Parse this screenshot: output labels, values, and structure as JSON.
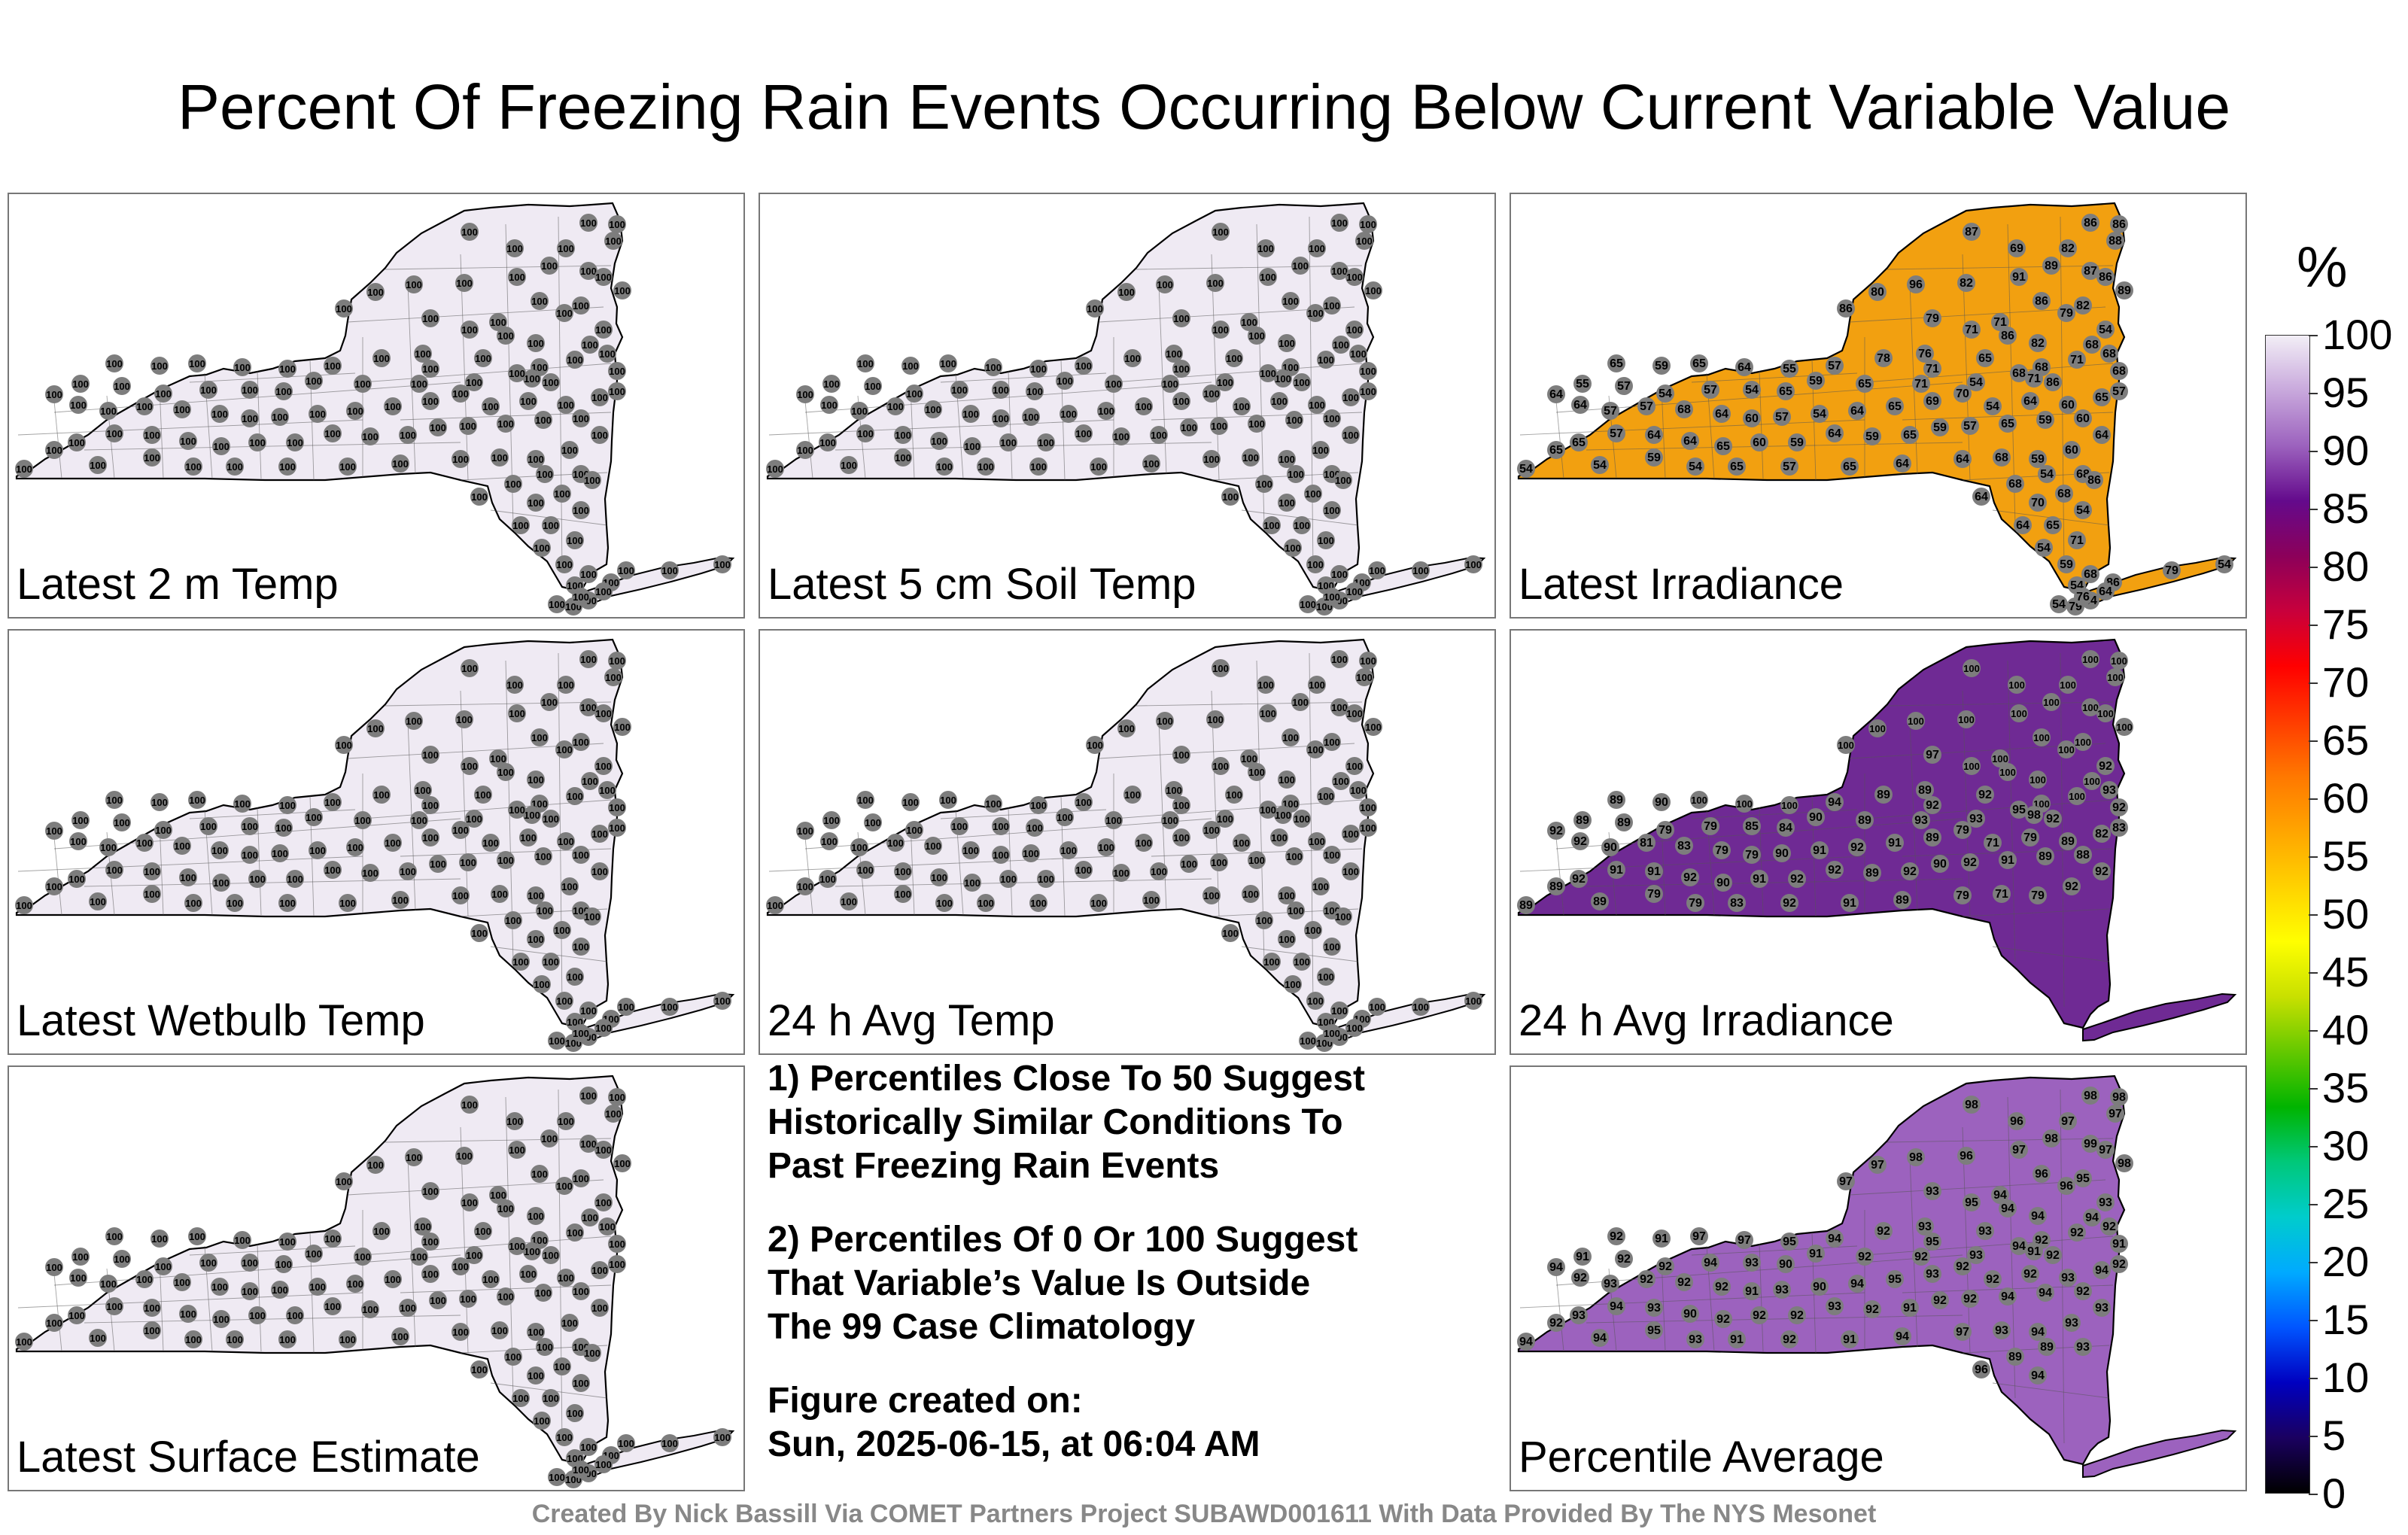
{
  "title": "Percent Of Freezing Rain Events Occurring Below Current Variable Value",
  "panels": [
    {
      "label": "Latest 2 m Temp",
      "fill": "#efeaf3",
      "values": [
        "100",
        "100",
        "100",
        "100",
        "100",
        "100",
        "100",
        "100",
        "100",
        "100",
        "100",
        "100",
        "100",
        "100",
        "100",
        "100",
        "100",
        "100",
        "100",
        "100",
        "100",
        "100",
        "100",
        "100",
        "100",
        "100",
        "100",
        "100",
        "100",
        "100",
        "100",
        "100",
        "100",
        "100",
        "100",
        "100",
        "100",
        "100",
        "100",
        "100",
        "100",
        "100",
        "100",
        "100",
        "100",
        "100",
        "100",
        "100",
        "100",
        "100",
        "100",
        "100",
        "100",
        "100",
        "100",
        "100",
        "100",
        "100",
        "100",
        "100",
        "100",
        "100",
        "100",
        "100",
        "100",
        "100",
        "100",
        "100",
        "100",
        "100",
        "100",
        "100",
        "100",
        "100",
        "100",
        "100",
        "100",
        "100",
        "100",
        "100",
        "100",
        "100",
        "100",
        "100",
        "100",
        "100",
        "100",
        "100",
        "100",
        "100",
        "100",
        "100",
        "100",
        "100",
        "100",
        "100",
        "100",
        "100",
        "100",
        "100",
        "100",
        "100",
        "100",
        "100",
        "100",
        "100",
        "100",
        "100",
        "100",
        "100",
        "100",
        "100",
        "100",
        "100",
        "100",
        "100",
        "100",
        "100",
        "100",
        "100",
        "100",
        "100",
        "100"
      ]
    },
    {
      "label": "Latest 5 cm Soil Temp",
      "fill": "#efeaf3",
      "values": [
        "100",
        "100",
        "100",
        "100",
        "100",
        "100",
        "100",
        "100",
        "100",
        "100",
        "100",
        "100",
        "100",
        "100",
        "100",
        "100",
        "100",
        "100",
        "100",
        "100",
        "100",
        "100",
        "100",
        "100",
        "100",
        "100",
        "100",
        "100",
        "100",
        "100",
        "100",
        "100",
        "100",
        "100",
        "100",
        "100",
        "100",
        "100",
        "100",
        "100",
        "100",
        "100",
        "100",
        "100",
        "100",
        "100",
        "100",
        "100",
        "100",
        "100",
        "100",
        "100",
        "100",
        "100",
        "100",
        "100",
        "100",
        "100",
        "100",
        "100",
        "100",
        "100",
        "100",
        "100",
        "100",
        "100",
        "100",
        "100",
        "100",
        "100",
        "100",
        "100",
        "100",
        "100",
        "100",
        "100",
        "100",
        "100",
        "100",
        "100",
        "100",
        "100",
        "100",
        "100",
        "100",
        "100",
        "100",
        "100",
        "100",
        "100",
        "100",
        "100",
        "100",
        "100",
        "100",
        "100",
        "100",
        "100",
        "100",
        "100",
        "100",
        "100",
        "100",
        "100",
        "100",
        "100",
        "100",
        "100",
        "100",
        "100",
        "100",
        "100",
        "100",
        "100",
        "100",
        "100",
        "100",
        "100",
        "100",
        "100",
        "100",
        "100",
        "100"
      ]
    },
    {
      "label": "Latest Irradiance",
      "fill": "#f2a010",
      "values": [
        "86",
        "86",
        "87",
        "88",
        "82",
        "69",
        "89",
        "87",
        "86",
        "91",
        "82",
        "89",
        "80",
        "96",
        "86",
        "86",
        "82",
        "79",
        "71",
        "79",
        "71",
        "86",
        "82",
        "68",
        "54",
        "71",
        "68",
        "71",
        "68",
        "86",
        "68",
        "68",
        "76",
        "78",
        "65",
        "59",
        "65",
        "64",
        "55",
        "57",
        "71",
        "65",
        "54",
        "71",
        "65",
        "59",
        "65",
        "54",
        "57",
        "54",
        "57",
        "55",
        "64",
        "64",
        "57",
        "57",
        "68",
        "64",
        "60",
        "57",
        "54",
        "64",
        "65",
        "69",
        "70",
        "54",
        "64",
        "60",
        "65",
        "57",
        "60",
        "59",
        "65",
        "57",
        "59",
        "65",
        "59",
        "64",
        "59",
        "60",
        "65",
        "64",
        "64",
        "57",
        "65",
        "65",
        "54",
        "54",
        "59",
        "54",
        "65",
        "57",
        "65",
        "64",
        "64",
        "68",
        "59",
        "60",
        "64",
        "68",
        "54",
        "68",
        "64",
        "70",
        "68",
        "86",
        "54",
        "65",
        "64",
        "71",
        "54",
        "59",
        "68",
        "54",
        "64",
        "79",
        "86",
        "79",
        "54",
        "54",
        "76",
        "64"
      ]
    },
    {
      "label": "Latest Wetbulb Temp",
      "fill": "#efeaf3",
      "values": [
        "100",
        "100",
        "100",
        "100",
        "100",
        "100",
        "100",
        "100",
        "100",
        "100",
        "100",
        "100",
        "100",
        "100",
        "100",
        "100",
        "100",
        "100",
        "100",
        "100",
        "100",
        "100",
        "100",
        "100",
        "100",
        "100",
        "100",
        "100",
        "100",
        "100",
        "100",
        "100",
        "100",
        "100",
        "100",
        "100",
        "100",
        "100",
        "100",
        "100",
        "100",
        "100",
        "100",
        "100",
        "100",
        "100",
        "100",
        "100",
        "100",
        "100",
        "100",
        "100",
        "100",
        "100",
        "100",
        "100",
        "100",
        "100",
        "100",
        "100",
        "100",
        "100",
        "100",
        "100",
        "100",
        "100",
        "100",
        "100",
        "100",
        "100",
        "100",
        "100",
        "100",
        "100",
        "100",
        "100",
        "100",
        "100",
        "100",
        "100",
        "100",
        "100",
        "100",
        "100",
        "100",
        "100",
        "100",
        "100",
        "100",
        "100",
        "100",
        "100",
        "100",
        "100",
        "100",
        "100",
        "100",
        "100",
        "100",
        "100",
        "100",
        "100",
        "100",
        "100",
        "100",
        "100",
        "100",
        "100",
        "100",
        "100",
        "100",
        "100",
        "100",
        "100",
        "100",
        "100",
        "100",
        "100",
        "100",
        "100",
        "100",
        "100",
        "100"
      ]
    },
    {
      "label": "24 h Avg Temp",
      "fill": "#efeaf3",
      "values": [
        "100",
        "100",
        "100",
        "100",
        "100",
        "100",
        "100",
        "100",
        "100",
        "100",
        "100",
        "100",
        "100",
        "100",
        "100",
        "100",
        "100",
        "100",
        "100",
        "100",
        "100",
        "100",
        "100",
        "100",
        "100",
        "100",
        "100",
        "100",
        "100",
        "100",
        "100",
        "100",
        "100",
        "100",
        "100",
        "100",
        "100",
        "100",
        "100",
        "100",
        "100",
        "100",
        "100",
        "100",
        "100",
        "100",
        "100",
        "100",
        "100",
        "100",
        "100",
        "100",
        "100",
        "100",
        "100",
        "100",
        "100",
        "100",
        "100",
        "100",
        "100",
        "100",
        "100",
        "100",
        "100",
        "100",
        "100",
        "100",
        "100",
        "100",
        "100",
        "100",
        "100",
        "100",
        "100",
        "100",
        "100",
        "100",
        "100",
        "100",
        "100",
        "100",
        "100",
        "100",
        "100",
        "100",
        "100",
        "100",
        "100",
        "100",
        "100",
        "100",
        "100",
        "100",
        "100",
        "100",
        "100",
        "100",
        "100",
        "100",
        "100",
        "100",
        "100",
        "100",
        "100",
        "100",
        "100",
        "100",
        "100",
        "100",
        "100",
        "100",
        "100",
        "100",
        "100",
        "100",
        "100",
        "100",
        "100",
        "100",
        "100",
        "100",
        "100"
      ]
    },
    {
      "label": "24 h Avg Irradiance",
      "fill": "#6f2a94",
      "values": [
        "100",
        "100",
        "100",
        "100",
        "100",
        "100",
        "100",
        "100",
        "100",
        "100",
        "100",
        "100",
        "100",
        "100",
        "100",
        "100",
        "100",
        "100",
        "100",
        "97",
        "100",
        "100",
        "100",
        "100",
        "92",
        "100",
        "100",
        "98",
        "95",
        "92",
        "93",
        "92",
        "89",
        "89",
        "89",
        "90",
        "100",
        "100",
        "100",
        "94",
        "92",
        "92",
        "93",
        "93",
        "89",
        "90",
        "84",
        "85",
        "79",
        "79",
        "89",
        "89",
        "92",
        "92",
        "90",
        "81",
        "83",
        "79",
        "79",
        "90",
        "91",
        "92",
        "91",
        "89",
        "79",
        "71",
        "79",
        "89",
        "82",
        "83",
        "88",
        "89",
        "91",
        "92",
        "90",
        "92",
        "89",
        "92",
        "92",
        "91",
        "90",
        "92",
        "91",
        "91",
        "92",
        "89",
        "89",
        "89",
        "79",
        "79",
        "83",
        "92",
        "91",
        "89",
        "79",
        "71",
        "79",
        "92",
        "92"
      ]
    },
    {
      "label": "Latest Surface Estimate",
      "fill": "#efeaf3",
      "values": [
        "100",
        "100",
        "100",
        "100",
        "100",
        "100",
        "100",
        "100",
        "100",
        "100",
        "100",
        "100",
        "100",
        "100",
        "100",
        "100",
        "100",
        "100",
        "100",
        "100",
        "100",
        "100",
        "100",
        "100",
        "100",
        "100",
        "100",
        "100",
        "100",
        "100",
        "100",
        "100",
        "100",
        "100",
        "100",
        "100",
        "100",
        "100",
        "100",
        "100",
        "100",
        "100",
        "100",
        "100",
        "100",
        "100",
        "100",
        "100",
        "100",
        "100",
        "100",
        "100",
        "100",
        "100",
        "100",
        "100",
        "100",
        "100",
        "100",
        "100",
        "100",
        "100",
        "100",
        "100",
        "100",
        "100",
        "100",
        "100",
        "100",
        "100",
        "100",
        "100",
        "100",
        "100",
        "100",
        "100",
        "100",
        "100",
        "100",
        "100",
        "100",
        "100",
        "100",
        "100",
        "100",
        "100",
        "100",
        "100",
        "100",
        "100",
        "100",
        "100",
        "100",
        "100",
        "100",
        "100",
        "100",
        "100",
        "100",
        "100",
        "100",
        "100",
        "100",
        "100",
        "100",
        "100",
        "100",
        "100",
        "100",
        "100",
        "100",
        "100",
        "100",
        "100",
        "100",
        "100",
        "100",
        "100",
        "100",
        "100",
        "100",
        "100",
        "100"
      ]
    },
    {
      "label": "Percentile Average",
      "fill": "#9c62be",
      "values": [
        "98",
        "98",
        "98",
        "97",
        "97",
        "96",
        "98",
        "99",
        "97",
        "97",
        "96",
        "98",
        "97",
        "98",
        "97",
        "96",
        "95",
        "96",
        "94",
        "93",
        "95",
        "94",
        "94",
        "94",
        "93",
        "92",
        "92",
        "91",
        "94",
        "92",
        "92",
        "91",
        "93",
        "92",
        "92",
        "91",
        "97",
        "97",
        "95",
        "94",
        "95",
        "93",
        "93",
        "92",
        "92",
        "91",
        "90",
        "93",
        "94",
        "92",
        "92",
        "91",
        "94",
        "92",
        "93",
        "92",
        "92",
        "92",
        "91",
        "93",
        "90",
        "94",
        "95",
        "93",
        "92",
        "92",
        "92",
        "93",
        "94",
        "92",
        "92",
        "94",
        "94",
        "92",
        "92",
        "91",
        "92",
        "93",
        "92",
        "92",
        "92",
        "90",
        "93",
        "94",
        "93",
        "92",
        "94",
        "94",
        "95",
        "93",
        "91",
        "92",
        "91",
        "94",
        "97",
        "93",
        "94",
        "93",
        "93",
        "93",
        "89",
        "89",
        "96",
        "94"
      ]
    }
  ],
  "notes": {
    "line1": "1) Percentiles Close To 50 Suggest",
    "line2": "Historically Similar Conditions To",
    "line3": "Past Freezing Rain Events",
    "line4": "2) Percentiles Of 0 Or 100 Suggest",
    "line5": "That Variable’s Value Is Outside",
    "line6": "The 99 Case Climatology",
    "created_label": "Figure created on:",
    "created_value": "Sun, 2025-06-15, at 06:04 AM"
  },
  "credit": "Created By Nick Bassill Via COMET Partners Project SUBAWD001611 With Data Provided By The NYS Mesonet",
  "colorbar": {
    "unit": "%",
    "ticks": [
      "0",
      "5",
      "10",
      "15",
      "20",
      "25",
      "30",
      "35",
      "40",
      "45",
      "50",
      "55",
      "60",
      "65",
      "70",
      "75",
      "80",
      "85",
      "90",
      "95",
      "100"
    ],
    "stops": [
      "#000000",
      "#1a0060",
      "#0000c0",
      "#0055ff",
      "#00aaff",
      "#00cccc",
      "#00c87a",
      "#00b400",
      "#64c800",
      "#c8e000",
      "#ffff00",
      "#ffd200",
      "#ffa500",
      "#ff7800",
      "#ff3c00",
      "#ff0000",
      "#c8003c",
      "#8c005a",
      "#640a8c",
      "#9c62be",
      "#c8a8dc",
      "#f2eef6"
    ]
  }
}
